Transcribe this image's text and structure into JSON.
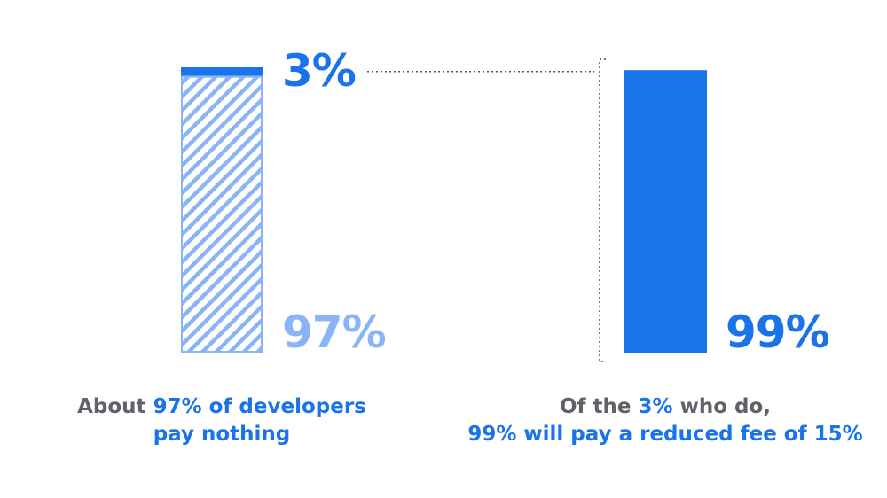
{
  "colors": {
    "primary": "#1a73e8",
    "light": "#8ab4f8",
    "text_grey": "#5f6368",
    "connector": "#202124"
  },
  "chart_data": [
    {
      "type": "bar",
      "stacked": true,
      "hatched_segment": "pay nothing",
      "segments": [
        {
          "label": "3%",
          "value": 3
        },
        {
          "label": "97%",
          "value": 97
        }
      ],
      "caption": {
        "prefix": "About ",
        "highlight_1": "97% of developers",
        "line_2": "pay nothing"
      }
    },
    {
      "type": "bar",
      "segments": [
        {
          "label": "99%",
          "value": 99
        }
      ],
      "caption": {
        "prefix": "Of the ",
        "highlight_1": "3%",
        "suffix": " who do,",
        "line_2": "99% will pay a reduced fee of 15%"
      }
    }
  ]
}
